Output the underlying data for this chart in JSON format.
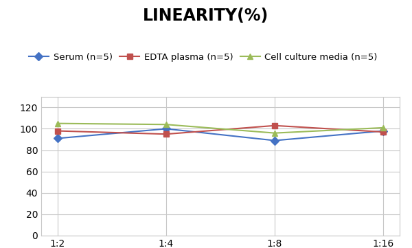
{
  "title": "LINEARITY(%)",
  "x_labels": [
    "1:2",
    "1:4",
    "1:8",
    "1:16"
  ],
  "series": [
    {
      "label": "Serum (n=5)",
      "values": [
        91,
        100,
        89,
        98
      ],
      "color": "#4472C4",
      "marker": "D",
      "linestyle": "-"
    },
    {
      "label": "EDTA plasma (n=5)",
      "values": [
        98,
        95,
        103,
        97
      ],
      "color": "#C0504D",
      "marker": "s",
      "linestyle": "-"
    },
    {
      "label": "Cell culture media (n=5)",
      "values": [
        105,
        104,
        96,
        101
      ],
      "color": "#9BBB59",
      "marker": "^",
      "linestyle": "-"
    }
  ],
  "ylim": [
    0,
    130
  ],
  "yticks": [
    0,
    20,
    40,
    60,
    80,
    100,
    120
  ],
  "title_fontsize": 17,
  "legend_fontsize": 9.5,
  "tick_fontsize": 10,
  "background_color": "#FFFFFF",
  "grid_color": "#C8C8C8"
}
